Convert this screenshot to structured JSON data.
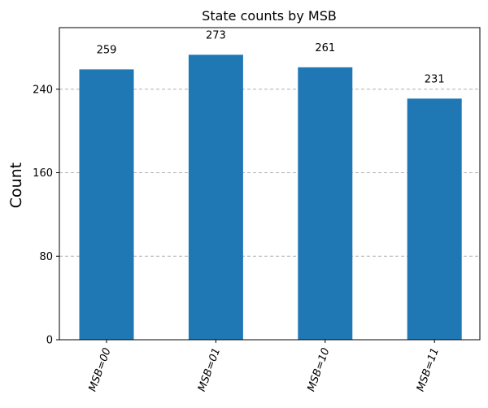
{
  "chart_data": {
    "type": "bar",
    "title": "State counts by MSB",
    "xlabel": "",
    "ylabel": "Count",
    "categories": [
      "MSB=00",
      "MSB=01",
      "MSB=10",
      "MSB=11"
    ],
    "values": [
      259,
      273,
      261,
      231
    ],
    "data_labels": [
      "259",
      "273",
      "261",
      "231"
    ],
    "yticks": [
      0,
      80,
      160,
      240
    ],
    "ylim": [
      0,
      299
    ],
    "grid": "y-dashed",
    "bar_color": "#1f77b4"
  }
}
